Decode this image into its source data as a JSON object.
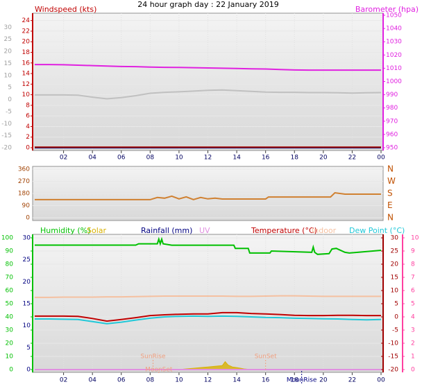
{
  "chart_data": [
    {
      "type": "line",
      "title": "24 hour graph day : 22 January 2019",
      "xlim": [
        0,
        24
      ],
      "xticks": [
        {
          "value": 2,
          "label": "02"
        },
        {
          "value": 4,
          "label": "04"
        },
        {
          "value": 6,
          "label": "06"
        },
        {
          "value": 8,
          "label": "08"
        },
        10,
        12,
        14,
        16,
        18,
        20,
        22,
        {
          "value": 24,
          "label": "00"
        }
      ],
      "grid": true,
      "axes": [
        {
          "title": "Windspeed (kts)",
          "color": "#c00000",
          "lim": [
            0,
            25
          ],
          "ticks": [
            0,
            2,
            4,
            6,
            8,
            10,
            12,
            14,
            16,
            18,
            20,
            22,
            24
          ]
        },
        {
          "color": "#a0a0a0",
          "lim": [
            -20,
            35
          ],
          "ticks": [
            -20,
            -15,
            -10,
            -5,
            0,
            5,
            10,
            15,
            20,
            25,
            30
          ]
        },
        {
          "title": "Barometer (hpa)",
          "color": "#e020e0",
          "lim": [
            950,
            1050
          ],
          "ticks": [
            950,
            960,
            970,
            980,
            990,
            1000,
            1010,
            1020,
            1030,
            1040,
            1050
          ]
        }
      ],
      "series": [
        {
          "color": "#c0c0c0",
          "axis": 1,
          "x": [
            0,
            1,
            2,
            3,
            4,
            5,
            6,
            7,
            8,
            9,
            10,
            11,
            12,
            13,
            14,
            15,
            16,
            17,
            18,
            19,
            20,
            21,
            22,
            23,
            24
          ],
          "values": [
            1.9,
            1.9,
            1.9,
            1.8,
            1.0,
            0.3,
            0.8,
            1.6,
            2.6,
            3.0,
            3.2,
            3.5,
            3.8,
            4.0,
            3.7,
            3.4,
            3.1,
            3.0,
            3.0,
            2.9,
            2.9,
            2.8,
            2.7,
            2.8,
            2.9
          ]
        },
        {
          "color": "#e020e0",
          "axis": 2,
          "x": [
            0,
            1,
            2,
            3,
            4,
            5,
            6,
            7,
            8,
            9,
            10,
            11,
            12,
            13,
            14,
            15,
            16,
            17,
            18,
            19,
            20,
            21,
            22,
            23,
            24
          ],
          "values": [
            1012.8,
            1012.8,
            1012.6,
            1012.3,
            1012.0,
            1011.6,
            1011.3,
            1011.2,
            1010.9,
            1010.7,
            1010.6,
            1010.4,
            1010.2,
            1010.0,
            1009.8,
            1009.6,
            1009.4,
            1009.0,
            1008.7,
            1008.6,
            1008.6,
            1008.6,
            1008.6,
            1008.6,
            1008.6
          ]
        },
        {
          "color": "#000080",
          "axis": 0,
          "x": [
            0,
            24
          ],
          "values": [
            0,
            0
          ]
        },
        {
          "color": "#a00000",
          "axis": 0,
          "x": [
            0,
            24
          ],
          "values": [
            0.1,
            0.1
          ]
        }
      ]
    },
    {
      "type": "line",
      "xlim": [
        0,
        24
      ],
      "grid": true,
      "axes": [
        {
          "color": "#a04000",
          "lim": [
            0,
            360
          ],
          "ticks": [
            0,
            90,
            180,
            270,
            360
          ]
        },
        {
          "color": "#c05000",
          "lim": [
            0,
            360
          ],
          "ticks": [
            {
              "value": 0,
              "label": "N"
            },
            {
              "value": 90,
              "label": "E"
            },
            {
              "value": 180,
              "label": "S"
            },
            {
              "value": 270,
              "label": "W"
            },
            {
              "value": 360,
              "label": "N"
            }
          ]
        }
      ],
      "series": [
        {
          "color": "#d08030",
          "axis": 0,
          "x": [
            0,
            8,
            8.5,
            9,
            9.5,
            10,
            10.5,
            11,
            11.5,
            12,
            12.5,
            13,
            16,
            16.2,
            20.5,
            20.8,
            21.5,
            24
          ],
          "values": [
            134,
            134,
            150,
            145,
            160,
            140,
            155,
            135,
            150,
            140,
            145,
            139,
            139,
            154,
            154,
            185,
            175,
            175
          ]
        }
      ]
    },
    {
      "type": "line",
      "xlim": [
        0,
        24
      ],
      "xticks": [
        {
          "value": 2,
          "label": "02"
        },
        {
          "value": 4,
          "label": "04"
        },
        {
          "value": 6,
          "label": "06"
        },
        {
          "value": 8,
          "label": "08"
        },
        10,
        12,
        14,
        16,
        18,
        20,
        22,
        {
          "value": 24,
          "label": "00"
        }
      ],
      "grid": true,
      "axes": [
        {
          "color": "#00c000",
          "lim": [
            0,
            100
          ],
          "ticks": [
            0,
            10,
            20,
            30,
            40,
            50,
            60,
            70,
            80,
            90,
            100
          ]
        },
        {
          "color": "#000080",
          "lim": [
            0,
            30
          ],
          "ticks": [
            0,
            5,
            10,
            15,
            20,
            25,
            30
          ]
        },
        {
          "color": "#a00000",
          "lim": [
            -20,
            30
          ],
          "ticks": [
            -20,
            -15,
            -10,
            -5,
            0,
            5,
            10,
            15,
            20,
            25,
            30
          ]
        },
        {
          "color": "#ff40a0",
          "lim": [
            0,
            10
          ],
          "ticks": [
            0,
            1,
            2,
            3,
            4,
            5,
            6,
            7,
            8,
            9,
            10
          ]
        }
      ],
      "series": [
        {
          "name": "Humidity (%)",
          "color": "#00c000",
          "axis": 0,
          "x": [
            0,
            7,
            7.2,
            8.5,
            8.6,
            8.7,
            8.8,
            8.9,
            9.5,
            13.8,
            13.9,
            14.8,
            14.9,
            16.3,
            16.4,
            19.2,
            19.3,
            19.4,
            19.6,
            20.4,
            20.6,
            20.9,
            21.5,
            21.8,
            24
          ],
          "values": [
            94.5,
            94.5,
            95.5,
            95.5,
            99,
            95.5,
            99,
            95.5,
            94.4,
            94.4,
            92,
            92,
            88.5,
            88.5,
            90,
            89,
            93,
            89,
            87.5,
            88,
            91.5,
            92,
            89,
            88.5,
            90.5
          ]
        },
        {
          "name": "Solar",
          "color": "#d8b000",
          "fill": true,
          "axis": 0,
          "x": [
            10,
            10.5,
            11,
            11.5,
            12,
            12.5,
            13,
            13.2,
            13.4,
            13.7,
            14,
            14.5,
            15
          ],
          "values": [
            0,
            0.5,
            1,
            1.5,
            2,
            2.5,
            3,
            6,
            3.5,
            2,
            1.5,
            0.5,
            0
          ]
        },
        {
          "name": "Rainfall (mm)",
          "color": "#000080",
          "axis": 1,
          "x": [
            0,
            24
          ],
          "values": [
            0,
            0
          ]
        },
        {
          "name": "UV",
          "color": "#e090e0",
          "axis": 3,
          "x": [
            0,
            24
          ],
          "values": [
            0,
            0
          ]
        },
        {
          "name": "Temperature (°C)",
          "color": "#c00000",
          "axis": 2,
          "x": [
            0,
            1,
            2,
            3,
            4,
            5,
            6,
            7,
            8,
            9,
            10,
            11,
            12,
            13,
            14,
            15,
            16,
            17,
            18,
            19,
            20,
            21,
            22,
            23,
            24
          ],
          "values": [
            0.3,
            0.3,
            0.3,
            0.2,
            -0.6,
            -1.6,
            -1.0,
            -0.3,
            0.5,
            0.8,
            1.0,
            1.1,
            1.1,
            1.6,
            1.6,
            1.3,
            1.1,
            0.9,
            0.6,
            0.5,
            0.5,
            0.6,
            0.6,
            0.5,
            0.5
          ]
        },
        {
          "name": "Indoor",
          "color": "#f5c0a0",
          "axis": 2,
          "x": [
            0,
            1,
            2,
            3,
            4,
            5,
            6,
            7,
            8,
            9,
            10,
            11,
            12,
            13,
            14,
            15,
            16,
            17,
            18,
            19,
            20,
            21,
            22,
            23,
            24
          ],
          "values": [
            7.4,
            7.4,
            7.5,
            7.5,
            7.5,
            7.6,
            7.6,
            7.7,
            7.8,
            7.9,
            7.9,
            7.9,
            7.9,
            7.9,
            7.8,
            7.8,
            7.9,
            8.0,
            8.0,
            7.9,
            7.8,
            7.8,
            7.8,
            7.8,
            7.8
          ]
        },
        {
          "name": "Dew Point (°C)",
          "color": "#20c8d8",
          "axis": 2,
          "x": [
            0,
            1,
            2,
            3,
            4,
            5,
            6,
            7,
            8,
            9,
            10,
            11,
            12,
            13,
            14,
            15,
            16,
            17,
            18,
            19,
            20,
            21,
            22,
            23,
            24
          ],
          "values": [
            -0.8,
            -0.8,
            -0.9,
            -1.0,
            -1.8,
            -2.6,
            -2.0,
            -1.2,
            -0.5,
            0,
            0.2,
            0.3,
            0.2,
            0.3,
            0.2,
            0,
            -0.2,
            -0.3,
            -0.5,
            -0.6,
            -0.7,
            -0.8,
            -1.0,
            -1.1,
            -1.0
          ]
        }
      ],
      "annotations": [
        {
          "text": "SunRise",
          "x": 8.2,
          "color": "#f0a080"
        },
        {
          "text": "SunSet",
          "x": 16.0,
          "color": "#f0a080"
        },
        {
          "text": "MoonSet",
          "x": 8.6,
          "color": "#f0a080"
        },
        {
          "text": "MoonRise",
          "x": 18.5,
          "color": "#000080"
        }
      ]
    }
  ]
}
